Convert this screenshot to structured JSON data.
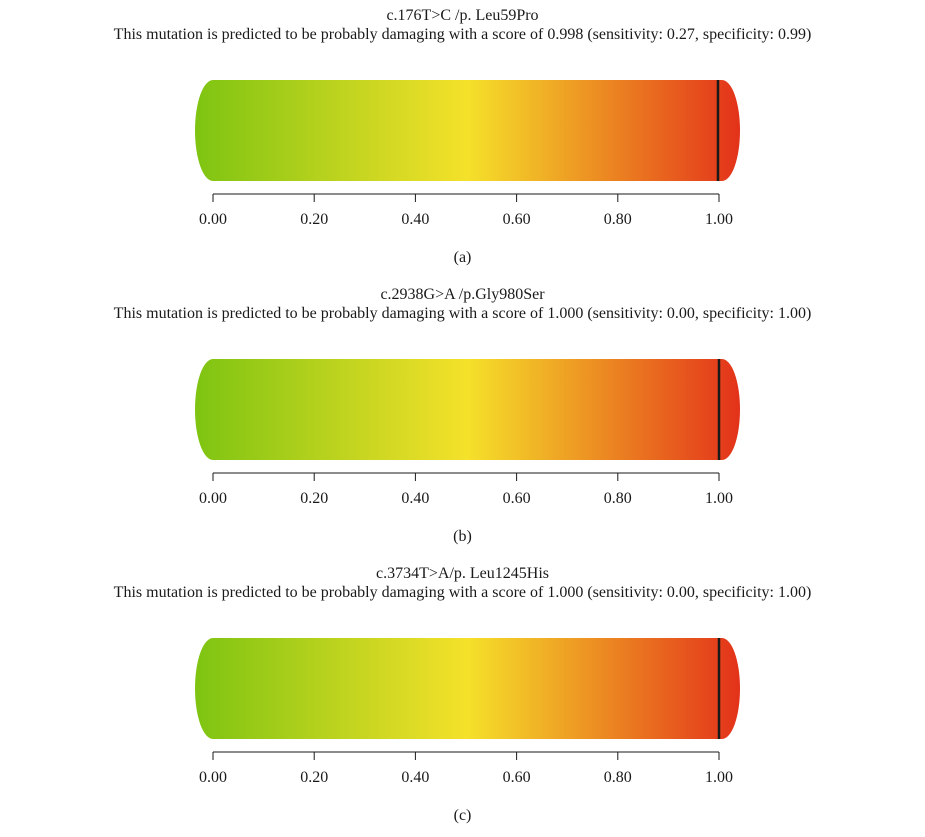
{
  "chart_data": [
    {
      "type": "gauge",
      "title": "c.176T>C /p. Leu59Pro",
      "subtitle": "This mutation is predicted to be probably damaging with a score of 0.998 (sensitivity: 0.27, specificity: 0.99)",
      "score": 0.998,
      "sensitivity": 0.27,
      "specificity": 0.99,
      "xlim": [
        0,
        1
      ],
      "ticks": [
        0,
        0.2,
        0.4,
        0.6,
        0.8,
        1.0
      ],
      "tick_labels": [
        "0.00",
        "0.20",
        "0.40",
        "0.60",
        "0.80",
        "1.00"
      ],
      "label": "(a)",
      "gradient_colors": [
        "#7ec412",
        "#f5e12a",
        "#e3321a"
      ]
    },
    {
      "type": "gauge",
      "title": "c.2938G>A /p.Gly980Ser",
      "subtitle": "This mutation is predicted to be probably damaging with a score of 1.000 (sensitivity: 0.00, specificity: 1.00)",
      "score": 1.0,
      "sensitivity": 0.0,
      "specificity": 1.0,
      "xlim": [
        0,
        1
      ],
      "ticks": [
        0,
        0.2,
        0.4,
        0.6,
        0.8,
        1.0
      ],
      "tick_labels": [
        "0.00",
        "0.20",
        "0.40",
        "0.60",
        "0.80",
        "1.00"
      ],
      "label": "(b)",
      "gradient_colors": [
        "#7ec412",
        "#f5e12a",
        "#e3321a"
      ]
    },
    {
      "type": "gauge",
      "title": "c.3734T>A/p. Leu1245His",
      "subtitle": "This mutation is predicted to be probably damaging with a score of 1.000 (sensitivity: 0.00, specificity: 1.00)",
      "score": 1.0,
      "sensitivity": 0.0,
      "specificity": 1.0,
      "xlim": [
        0,
        1
      ],
      "ticks": [
        0,
        0.2,
        0.4,
        0.6,
        0.8,
        1.0
      ],
      "tick_labels": [
        "0.00",
        "0.20",
        "0.40",
        "0.60",
        "0.80",
        "1.00"
      ],
      "label": "(c)",
      "gradient_colors": [
        "#7ec412",
        "#f5e12a",
        "#e3321a"
      ]
    }
  ]
}
